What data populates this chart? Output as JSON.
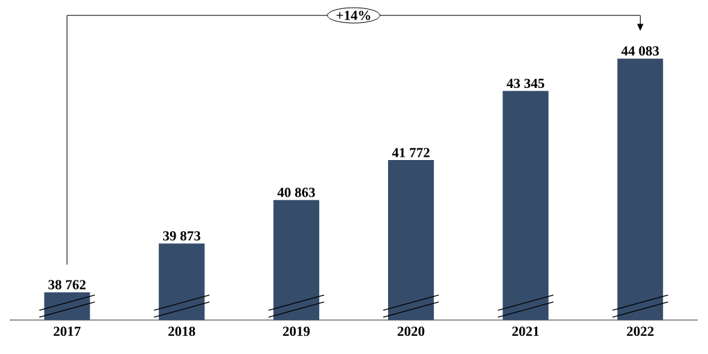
{
  "chart_data": {
    "type": "bar",
    "categories": [
      "2017",
      "2018",
      "2019",
      "2020",
      "2021",
      "2022"
    ],
    "values": [
      38762,
      39873,
      40863,
      41772,
      43345,
      44083
    ],
    "value_labels": [
      "38 762",
      "39 873",
      "40 863",
      "41 772",
      "43 345",
      "44 083"
    ],
    "color": "#364c6b",
    "ylim": [
      38130,
      45100
    ],
    "annotations": [
      "+14%"
    ]
  }
}
